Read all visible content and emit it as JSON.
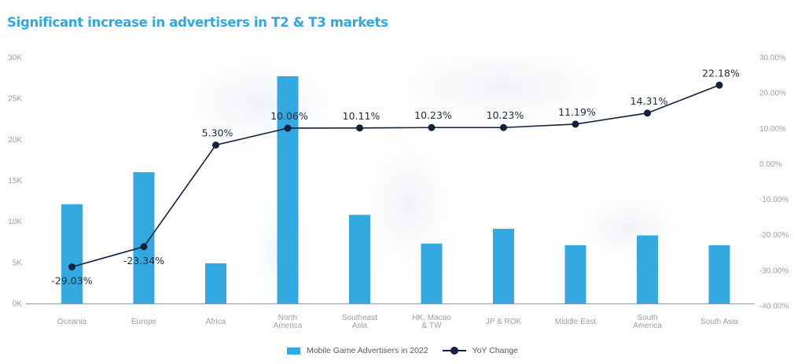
{
  "chart_data": {
    "type": "bar",
    "title": "Significant increase in advertisers in T2 & T3 markets",
    "categories": [
      [
        "Oceania"
      ],
      [
        "Europe"
      ],
      [
        "Africa"
      ],
      [
        "North",
        "America"
      ],
      [
        "Southeast",
        "Asia"
      ],
      [
        "HK, Macao",
        "& TW"
      ],
      [
        "JP & ROK"
      ],
      [
        "Middle East"
      ],
      [
        "South",
        "America"
      ],
      [
        "South Asia"
      ]
    ],
    "series": [
      {
        "name": "Mobile Game Advertisers in 2022",
        "type": "bar",
        "axis": "left",
        "color": "#34a9e1",
        "values": [
          12100,
          16000,
          4900,
          27700,
          10800,
          7300,
          9100,
          7100,
          8300,
          7100
        ]
      },
      {
        "name": "YoY Change",
        "type": "line",
        "axis": "right",
        "color": "#14213d",
        "values": [
          -29.03,
          -23.34,
          5.3,
          10.06,
          10.11,
          10.23,
          10.23,
          11.19,
          14.31,
          22.18
        ],
        "labels": [
          "-29.03%",
          "-23.34%",
          "5.30%",
          "10.06%",
          "10.11%",
          "10.23%",
          "10.23%",
          "11.19%",
          "14.31%",
          "22.18%"
        ]
      }
    ],
    "y_left": {
      "range": [
        0,
        30000
      ],
      "ticks": [
        0,
        5000,
        10000,
        15000,
        20000,
        25000,
        30000
      ],
      "tick_labels": [
        "0K",
        "5K",
        "10K",
        "15K",
        "20K",
        "25K",
        "30K"
      ]
    },
    "y_right": {
      "range": [
        -40,
        30
      ],
      "ticks": [
        -40,
        -30,
        -20,
        -10,
        0,
        10,
        20,
        30
      ],
      "tick_labels": [
        "-40.00%",
        "-30.00%",
        "-20.00%",
        "-10.00%",
        "0.00%",
        "10.00%",
        "20.00%",
        "30.00%"
      ]
    },
    "grid": false,
    "legend": "bottom-center",
    "xlabel": "",
    "ylabel": ""
  }
}
